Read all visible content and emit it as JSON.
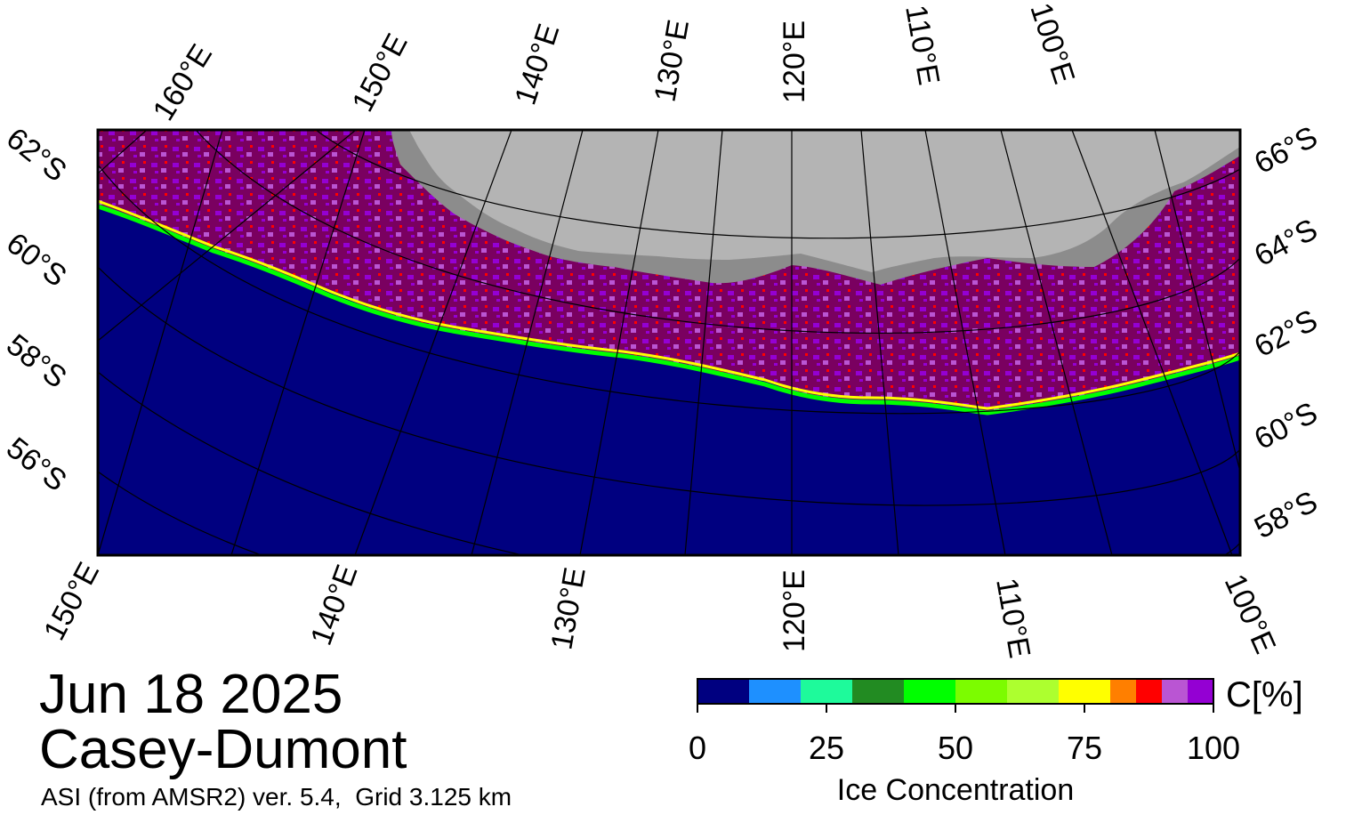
{
  "date": "Jun 18 2025",
  "region": "Casey-Dumont",
  "product": "ASI (from AMSR2) ver. 5.4,  Grid 3.125 km",
  "colorbar": {
    "title": "Ice Concentration",
    "unit": "C[%]",
    "ticks": [
      "0",
      "25",
      "50",
      "75",
      "100"
    ],
    "range": [
      0,
      100
    ],
    "colors": [
      "#000080",
      "#1e90ff",
      "#1efa9b",
      "#228b22",
      "#00ff00",
      "#7cfc00",
      "#adff2f",
      "#ffff00",
      "#ff7f00",
      "#ff0000",
      "#ba55d3",
      "#9400d3"
    ],
    "max_color": "#7a0060"
  },
  "map": {
    "ocean_color": "#000080",
    "land_color": "#b4b4b4",
    "ice_shelf_color": "#8c8c8c",
    "top_lon_labels": [
      "160°E",
      "150°E",
      "140°E",
      "130°E",
      "120°E",
      "110°E",
      "100°E"
    ],
    "bottom_lon_labels": [
      "150°E",
      "140°E",
      "130°E",
      "120°E",
      "110°E",
      "100°E"
    ],
    "left_lat_labels": [
      "62°S",
      "60°S",
      "58°S",
      "56°S"
    ],
    "right_lat_labels": [
      "66°S",
      "64°S",
      "62°S",
      "60°S",
      "58°S"
    ]
  }
}
